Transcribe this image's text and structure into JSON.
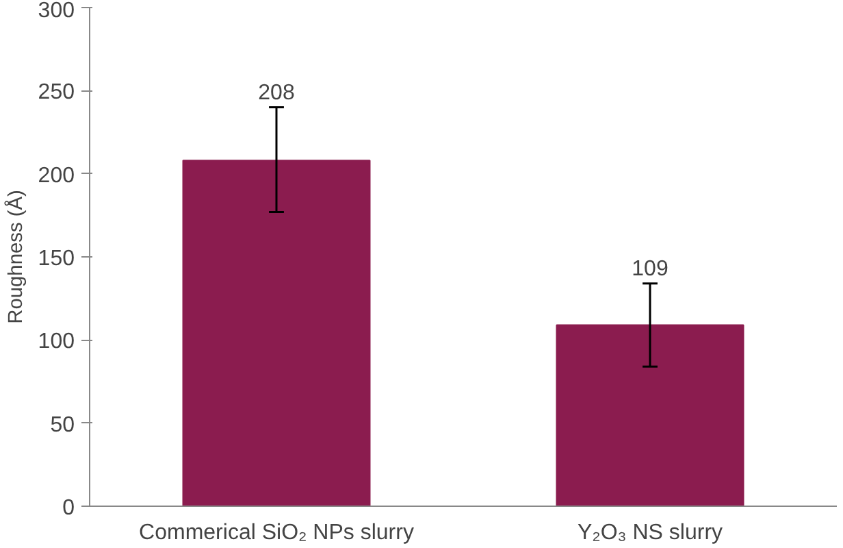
{
  "chart_data": {
    "type": "bar",
    "ylabel": "Roughness (Å)",
    "categories": [
      "Commerical SiO₂ NPs slurry",
      "Y₂O₃ NS slurry"
    ],
    "values": [
      208,
      109
    ],
    "color": "#8b1c4f",
    "errors": [
      [
        177,
        240
      ],
      [
        84,
        134
      ]
    ],
    "data_labels": true,
    "ylim": [
      0,
      300
    ],
    "yticks": [
      0,
      50,
      100,
      150,
      200,
      250,
      300
    ],
    "grid": false
  }
}
